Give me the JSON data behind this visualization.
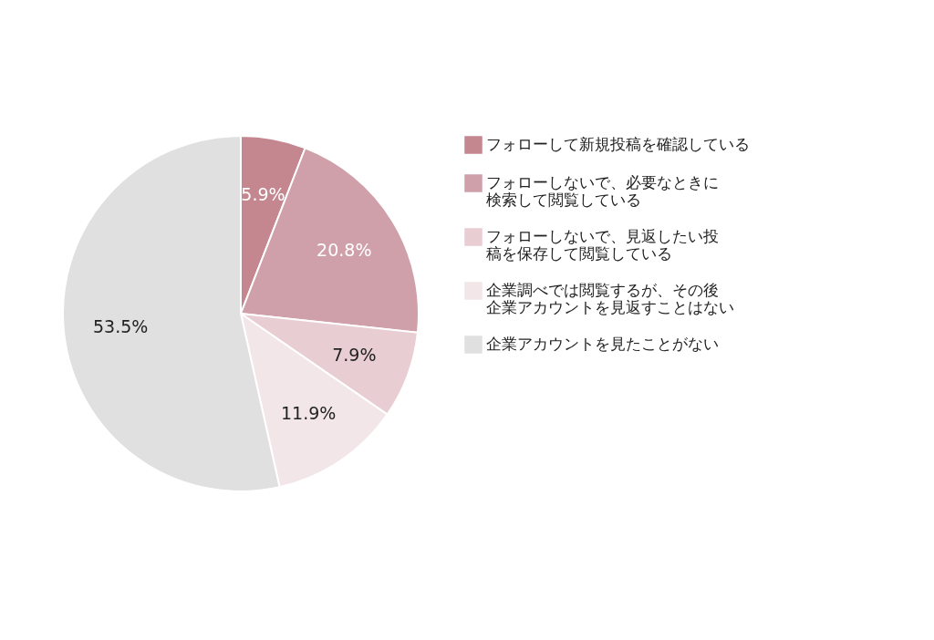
{
  "chart_data": {
    "type": "pie",
    "categories": [
      "フォローして新規投稿を確認している",
      "フォローしないで、必要なときに検索して閲覧している",
      "フォローしないで、見返したい投稿を保存して閲覧している",
      "企業調べでは閲覧するが、その後企業アカウントを見返すことはない",
      "企業アカウントを見たことがない"
    ],
    "values": [
      5.9,
      20.8,
      7.9,
      11.9,
      53.5
    ],
    "colors": [
      "#c4868f",
      "#cfa0aa",
      "#e8cdd2",
      "#f3e6e9",
      "#e0e0e0"
    ],
    "value_labels": [
      "5.9%",
      "20.8%",
      "7.9%",
      "11.9%",
      "53.5%"
    ],
    "legend": "right"
  }
}
